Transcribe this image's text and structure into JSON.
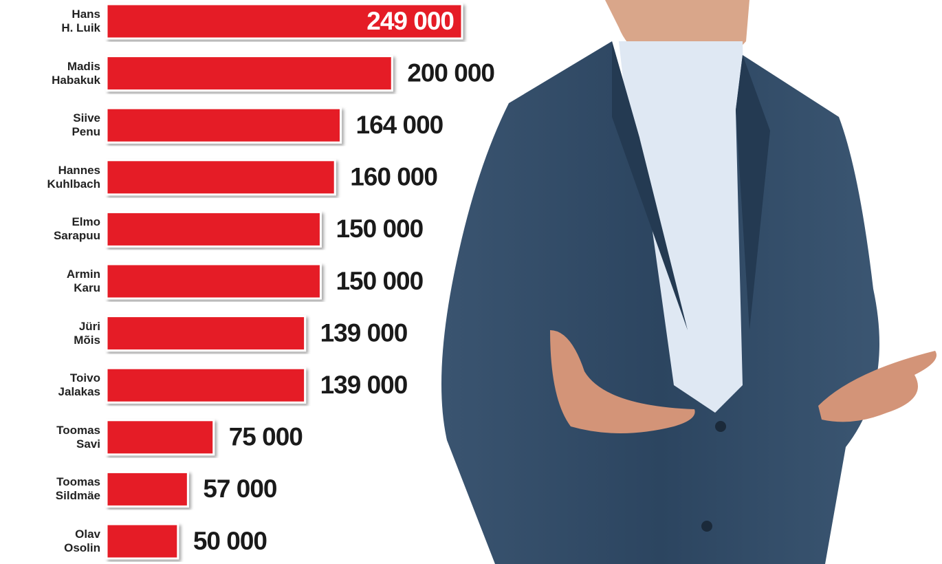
{
  "chart_data": {
    "type": "bar",
    "orientation": "horizontal",
    "categories": [
      "Hans\nH. Luik",
      "Madis\nHabakuk",
      "Siive\nPenu",
      "Hannes\nKuhlbach",
      "Elmo\nSarapuu",
      "Armin\nKaru",
      "Jüri\nMõis",
      "Toivo\nJalakas",
      "Toomas\nSavi",
      "Toomas\nSildmäe",
      "Olav\nOsolin"
    ],
    "values": [
      249000,
      200000,
      164000,
      160000,
      150000,
      150000,
      139000,
      139000,
      75000,
      57000,
      50000
    ],
    "value_labels": [
      "249 000",
      "200 000",
      "164 000",
      "160 000",
      "150 000",
      "150 000",
      "139 000",
      "139 000",
      "75 000",
      "57 000",
      "50 000"
    ],
    "color": "#e51e25"
  }
}
